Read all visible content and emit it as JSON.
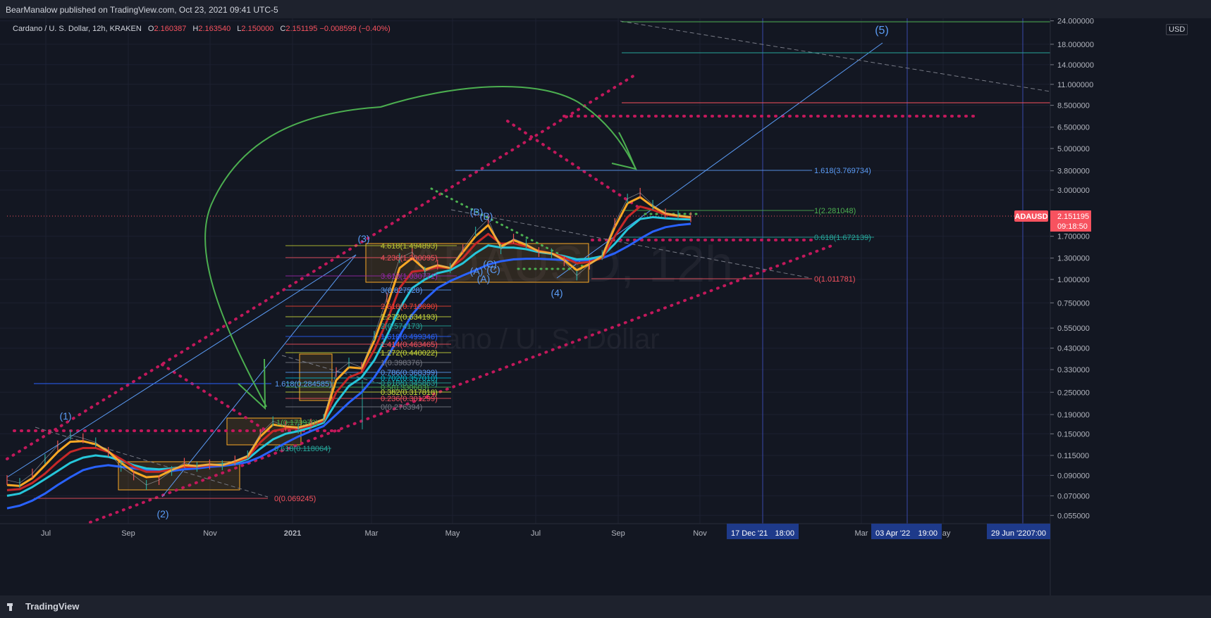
{
  "header": {
    "published": "BearManalow published on TradingView.com, Oct 23, 2021 09:41 UTC-5"
  },
  "legend": {
    "symbol": "Cardano / U. S. Dollar, 12h, KRAKEN",
    "open_label": "O",
    "open": "2.160387",
    "high_label": "H",
    "high": "2.163540",
    "low_label": "L",
    "low": "2.150000",
    "close_label": "C",
    "close": "2.151195",
    "change": "−0.008599 (−0.40%)"
  },
  "watermark": {
    "ticker": "ADAUSD, 12h",
    "name": "Cardano / U. S. Dollar"
  },
  "footer": {
    "brand": "TradingView"
  },
  "colors": {
    "background": "#131722",
    "price_line": "#f7525f",
    "wave_label": "#5b9cf6",
    "arrow": "#4caf50",
    "channel": "#c2185b"
  },
  "chart_data": {
    "type": "line",
    "y_scale": "log",
    "currency": "USD",
    "last_price": {
      "symbol": "ADAUSD",
      "value": "2.151195",
      "countdown": "09:18:50"
    },
    "y_ticks": [
      "24.000000",
      "18.000000",
      "14.000000",
      "11.000000",
      "8.500000",
      "6.500000",
      "5.000000",
      "3.800000",
      "3.000000",
      "1.700000",
      "1.300000",
      "1.000000",
      "0.750000",
      "0.550000",
      "0.430000",
      "0.330000",
      "0.250000",
      "0.190000",
      "0.150000",
      "0.115000",
      "0.090000",
      "0.070000",
      "0.055000"
    ],
    "x_ticks": [
      "Jul",
      "Sep",
      "Nov",
      "2021",
      "Mar",
      "May",
      "Jul",
      "Sep",
      "Nov",
      "Mar",
      "May"
    ],
    "x_highlights": [
      "17 Dec '21",
      "18:00",
      "03 Apr '22",
      "19:00",
      "29 Jun '22",
      "07:00"
    ],
    "wave_labels": [
      "(1)",
      "(2)",
      "(3)",
      "(4)",
      "(5)",
      "(A)",
      "(B)",
      "(C)",
      "(A)",
      "(B)",
      "(C)"
    ],
    "fib_levels": [
      {
        "label": "4.618(1.494893)",
        "color": "#c0ca33"
      },
      {
        "label": "4.236(1.300095)",
        "color": "#f7525f"
      },
      {
        "label": "3.618(1.030771)",
        "color": "#9c27b0"
      },
      {
        "label": "3(0.827528)",
        "color": "#5b9cf6"
      },
      {
        "label": "2.618(0.719690)",
        "color": "#f44336"
      },
      {
        "label": "2.272(0.634193)",
        "color": "#cddc39"
      },
      {
        "label": "2(0.574173)",
        "color": "#26a69a"
      },
      {
        "label": "1.618(0.499346)",
        "color": "#2962ff"
      },
      {
        "label": "1.414(0.463465)",
        "color": "#f7525f"
      },
      {
        "label": "1.272(0.440022)",
        "color": "#cddc39"
      },
      {
        "label": "1(0.398376)",
        "color": "#787b86"
      },
      {
        "label": "0.786(0.368399)",
        "color": "#5b9cf6"
      },
      {
        "label": "0.702(0.357010)",
        "color": "#00bcd4"
      },
      {
        "label": "0.618(0.345863)",
        "color": "#26a69a"
      },
      {
        "label": "0.5(0.330603)",
        "color": "#4caf50"
      },
      {
        "label": "0.382(0.317818)",
        "color": "#cddc39"
      },
      {
        "label": "0.236(0.301299)",
        "color": "#f7525f"
      },
      {
        "label": "0(0.276394)",
        "color": "#787b86"
      },
      {
        "label": "1.618(0.284585)",
        "color": "#5b9cf6"
      },
      {
        "label": "1(0.173970)",
        "color": "#4caf50"
      },
      {
        "label": "0.618(0.118064)",
        "color": "#26a69a"
      },
      {
        "label": "0(0.069245)",
        "color": "#f7525f"
      },
      {
        "label": "1.618(3.769734)",
        "color": "#5b9cf6"
      },
      {
        "label": "1(2.281048)",
        "color": "#4caf50"
      },
      {
        "label": "0.618(1.672139)",
        "color": "#26a69a"
      },
      {
        "label": "0(1.011781)",
        "color": "#f7525f"
      }
    ],
    "price_series": [
      0.085,
      0.082,
      0.092,
      0.11,
      0.13,
      0.148,
      0.142,
      0.135,
      0.12,
      0.1,
      0.09,
      0.08,
      0.085,
      0.095,
      0.105,
      0.1,
      0.103,
      0.102,
      0.108,
      0.115,
      0.15,
      0.175,
      0.165,
      0.16,
      0.17,
      0.18,
      0.32,
      0.36,
      0.34,
      0.5,
      0.8,
      1.3,
      1.4,
      1.1,
      1.2,
      1.15,
      1.45,
      1.8,
      2.1,
      1.45,
      1.65,
      1.55,
      1.4,
      1.38,
      1.25,
      1.05,
      1.2,
      1.35,
      2.0,
      2.7,
      2.9,
      2.5,
      2.25,
      2.2,
      2.15
    ],
    "moving_averages": [
      {
        "color": "#2962ff",
        "values": [
          0.06,
          0.062,
          0.066,
          0.072,
          0.08,
          0.088,
          0.096,
          0.1,
          0.102,
          0.1,
          0.098,
          0.096,
          0.095,
          0.095,
          0.097,
          0.098,
          0.1,
          0.101,
          0.103,
          0.106,
          0.113,
          0.123,
          0.134,
          0.145,
          0.155,
          0.165,
          0.19,
          0.22,
          0.25,
          0.3,
          0.38,
          0.5,
          0.65,
          0.78,
          0.9,
          0.98,
          1.05,
          1.12,
          1.2,
          1.25,
          1.28,
          1.29,
          1.29,
          1.28,
          1.27,
          1.26,
          1.27,
          1.3,
          1.38,
          1.5,
          1.65,
          1.8,
          1.9,
          1.95,
          1.98
        ]
      },
      {
        "color": "#26c6da",
        "values": [
          0.07,
          0.072,
          0.078,
          0.086,
          0.095,
          0.105,
          0.112,
          0.115,
          0.113,
          0.108,
          0.102,
          0.098,
          0.097,
          0.098,
          0.1,
          0.101,
          0.102,
          0.103,
          0.105,
          0.11,
          0.125,
          0.14,
          0.15,
          0.155,
          0.162,
          0.172,
          0.22,
          0.27,
          0.3,
          0.37,
          0.5,
          0.7,
          0.9,
          1.0,
          1.08,
          1.12,
          1.22,
          1.38,
          1.52,
          1.48,
          1.48,
          1.45,
          1.4,
          1.37,
          1.33,
          1.28,
          1.29,
          1.33,
          1.55,
          1.85,
          2.1,
          2.15,
          2.12,
          2.1,
          2.09
        ]
      },
      {
        "color": "#c62828",
        "values": [
          0.075,
          0.076,
          0.082,
          0.092,
          0.106,
          0.12,
          0.126,
          0.126,
          0.12,
          0.11,
          0.1,
          0.094,
          0.094,
          0.097,
          0.1,
          0.1,
          0.102,
          0.102,
          0.106,
          0.112,
          0.135,
          0.155,
          0.16,
          0.16,
          0.166,
          0.176,
          0.25,
          0.3,
          0.32,
          0.42,
          0.6,
          0.9,
          1.1,
          1.12,
          1.16,
          1.15,
          1.3,
          1.55,
          1.75,
          1.55,
          1.56,
          1.5,
          1.42,
          1.38,
          1.31,
          1.22,
          1.24,
          1.3,
          1.7,
          2.15,
          2.45,
          2.35,
          2.22,
          2.17,
          2.14
        ]
      },
      {
        "color": "#f9a825",
        "values": [
          0.08,
          0.079,
          0.087,
          0.102,
          0.12,
          0.136,
          0.137,
          0.132,
          0.121,
          0.105,
          0.094,
          0.088,
          0.089,
          0.096,
          0.102,
          0.101,
          0.103,
          0.102,
          0.107,
          0.114,
          0.145,
          0.168,
          0.164,
          0.162,
          0.169,
          0.179,
          0.29,
          0.34,
          0.335,
          0.47,
          0.72,
          1.15,
          1.3,
          1.13,
          1.19,
          1.15,
          1.4,
          1.7,
          1.95,
          1.5,
          1.62,
          1.53,
          1.41,
          1.38,
          1.27,
          1.12,
          1.21,
          1.33,
          1.9,
          2.55,
          2.75,
          2.45,
          2.25,
          2.19,
          2.15
        ]
      }
    ]
  }
}
